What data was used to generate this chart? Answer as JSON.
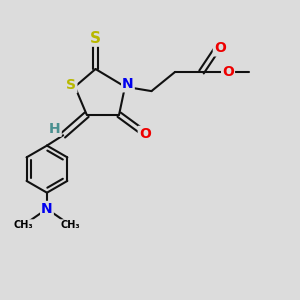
{
  "background_color": "#dcdcdc",
  "atom_colors": {
    "S": "#b8b800",
    "N": "#0000ee",
    "O": "#ee0000",
    "C": "#000000",
    "H": "#4a9090"
  },
  "bond_color": "#111111",
  "bond_width": 1.5,
  "font_size_atom": 10,
  "font_size_small": 8
}
